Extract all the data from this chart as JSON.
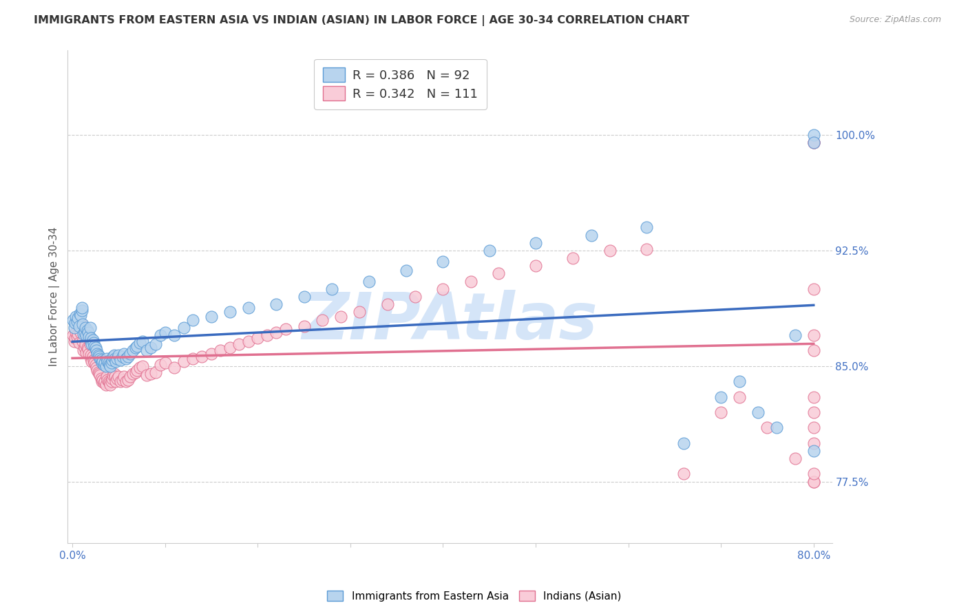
{
  "title": "IMMIGRANTS FROM EASTERN ASIA VS INDIAN (ASIAN) IN LABOR FORCE | AGE 30-34 CORRELATION CHART",
  "source": "Source: ZipAtlas.com",
  "ylabel": "In Labor Force | Age 30-34",
  "xlim": [
    -0.005,
    0.82
  ],
  "ylim": [
    0.735,
    1.055
  ],
  "xticks": [
    0.0,
    0.1,
    0.2,
    0.3,
    0.4,
    0.5,
    0.6,
    0.7,
    0.8
  ],
  "xticklabels": [
    "0.0%",
    "",
    "",
    "",
    "",
    "",
    "",
    "",
    "80.0%"
  ],
  "yticks": [
    0.775,
    0.85,
    0.925,
    1.0
  ],
  "yticklabels": [
    "77.5%",
    "85.0%",
    "92.5%",
    "100.0%"
  ],
  "series1_label": "Immigrants from Eastern Asia",
  "series1_fill": "#b8d4ee",
  "series1_edge": "#5b9bd5",
  "series1_R": 0.386,
  "series1_N": 92,
  "series1_line_color": "#3a6bbf",
  "series2_label": "Indians (Asian)",
  "series2_fill": "#f9ccd8",
  "series2_edge": "#e07090",
  "series2_R": 0.342,
  "series2_N": 111,
  "series2_line_color": "#e07090",
  "watermark": "ZIPAtlas",
  "watermark_color": "#d5e5f8",
  "background_color": "#ffffff",
  "grid_color": "#cccccc",
  "title_color": "#333333",
  "ylabel_color": "#555555",
  "tick_label_color": "#4472c4",
  "legend_R_color": "#4472c4",
  "legend_N_color": "#e05070",
  "blue_x": [
    0.001,
    0.002,
    0.003,
    0.004,
    0.005,
    0.006,
    0.007,
    0.008,
    0.009,
    0.01,
    0.01,
    0.011,
    0.012,
    0.013,
    0.014,
    0.015,
    0.016,
    0.017,
    0.018,
    0.019,
    0.02,
    0.02,
    0.021,
    0.022,
    0.023,
    0.024,
    0.025,
    0.026,
    0.027,
    0.028,
    0.029,
    0.03,
    0.031,
    0.032,
    0.033,
    0.034,
    0.035,
    0.036,
    0.037,
    0.038,
    0.039,
    0.04,
    0.041,
    0.042,
    0.043,
    0.044,
    0.045,
    0.046,
    0.047,
    0.048,
    0.05,
    0.052,
    0.054,
    0.056,
    0.058,
    0.06,
    0.062,
    0.065,
    0.068,
    0.07,
    0.073,
    0.076,
    0.08,
    0.085,
    0.09,
    0.095,
    0.1,
    0.11,
    0.12,
    0.13,
    0.15,
    0.17,
    0.19,
    0.22,
    0.25,
    0.28,
    0.32,
    0.36,
    0.4,
    0.45,
    0.5,
    0.56,
    0.62,
    0.66,
    0.7,
    0.72,
    0.74,
    0.76,
    0.78,
    0.8,
    0.8,
    0.8
  ],
  "blue_y": [
    0.88,
    0.875,
    0.878,
    0.882,
    0.879,
    0.881,
    0.876,
    0.884,
    0.883,
    0.886,
    0.888,
    0.877,
    0.871,
    0.872,
    0.875,
    0.87,
    0.873,
    0.872,
    0.869,
    0.875,
    0.866,
    0.868,
    0.864,
    0.867,
    0.865,
    0.863,
    0.862,
    0.86,
    0.858,
    0.857,
    0.856,
    0.855,
    0.854,
    0.852,
    0.853,
    0.851,
    0.852,
    0.85,
    0.855,
    0.853,
    0.852,
    0.851,
    0.85,
    0.852,
    0.854,
    0.856,
    0.857,
    0.855,
    0.853,
    0.855,
    0.857,
    0.854,
    0.856,
    0.858,
    0.855,
    0.856,
    0.858,
    0.86,
    0.862,
    0.863,
    0.865,
    0.866,
    0.86,
    0.862,
    0.864,
    0.87,
    0.872,
    0.87,
    0.875,
    0.88,
    0.882,
    0.885,
    0.888,
    0.89,
    0.895,
    0.9,
    0.905,
    0.912,
    0.918,
    0.925,
    0.93,
    0.935,
    0.94,
    0.8,
    0.83,
    0.84,
    0.82,
    0.81,
    0.87,
    1.0,
    0.795,
    0.995
  ],
  "pink_x": [
    0.001,
    0.002,
    0.003,
    0.004,
    0.005,
    0.006,
    0.007,
    0.008,
    0.009,
    0.01,
    0.01,
    0.011,
    0.012,
    0.013,
    0.014,
    0.015,
    0.016,
    0.017,
    0.018,
    0.019,
    0.02,
    0.02,
    0.021,
    0.022,
    0.023,
    0.024,
    0.025,
    0.026,
    0.027,
    0.028,
    0.029,
    0.03,
    0.031,
    0.032,
    0.033,
    0.034,
    0.035,
    0.036,
    0.037,
    0.038,
    0.039,
    0.04,
    0.041,
    0.042,
    0.043,
    0.044,
    0.045,
    0.046,
    0.047,
    0.048,
    0.05,
    0.052,
    0.054,
    0.056,
    0.058,
    0.06,
    0.062,
    0.065,
    0.068,
    0.07,
    0.073,
    0.076,
    0.08,
    0.085,
    0.09,
    0.095,
    0.1,
    0.11,
    0.12,
    0.13,
    0.14,
    0.15,
    0.16,
    0.17,
    0.18,
    0.19,
    0.2,
    0.21,
    0.22,
    0.23,
    0.25,
    0.27,
    0.29,
    0.31,
    0.34,
    0.37,
    0.4,
    0.43,
    0.46,
    0.5,
    0.54,
    0.58,
    0.62,
    0.66,
    0.7,
    0.72,
    0.75,
    0.78,
    0.8,
    0.8,
    0.8,
    0.8,
    0.8,
    0.8,
    0.8,
    0.8,
    0.8,
    0.8,
    0.8,
    0.8,
    0.8
  ],
  "pink_y": [
    0.87,
    0.866,
    0.868,
    0.872,
    0.869,
    0.871,
    0.865,
    0.873,
    0.872,
    0.875,
    0.877,
    0.866,
    0.86,
    0.862,
    0.864,
    0.859,
    0.862,
    0.861,
    0.858,
    0.864,
    0.855,
    0.857,
    0.853,
    0.856,
    0.854,
    0.852,
    0.851,
    0.849,
    0.847,
    0.846,
    0.845,
    0.844,
    0.842,
    0.84,
    0.841,
    0.839,
    0.84,
    0.838,
    0.843,
    0.841,
    0.84,
    0.839,
    0.838,
    0.84,
    0.842,
    0.844,
    0.845,
    0.843,
    0.84,
    0.842,
    0.843,
    0.84,
    0.841,
    0.843,
    0.84,
    0.841,
    0.843,
    0.845,
    0.846,
    0.847,
    0.849,
    0.85,
    0.844,
    0.845,
    0.846,
    0.851,
    0.852,
    0.849,
    0.853,
    0.855,
    0.856,
    0.858,
    0.86,
    0.862,
    0.864,
    0.866,
    0.868,
    0.87,
    0.872,
    0.874,
    0.876,
    0.88,
    0.882,
    0.885,
    0.89,
    0.895,
    0.9,
    0.905,
    0.91,
    0.915,
    0.92,
    0.925,
    0.926,
    0.78,
    0.82,
    0.83,
    0.81,
    0.79,
    0.995,
    0.995,
    0.995,
    0.775,
    0.775,
    0.78,
    0.8,
    0.81,
    0.82,
    0.83,
    0.86,
    0.87,
    0.9
  ]
}
